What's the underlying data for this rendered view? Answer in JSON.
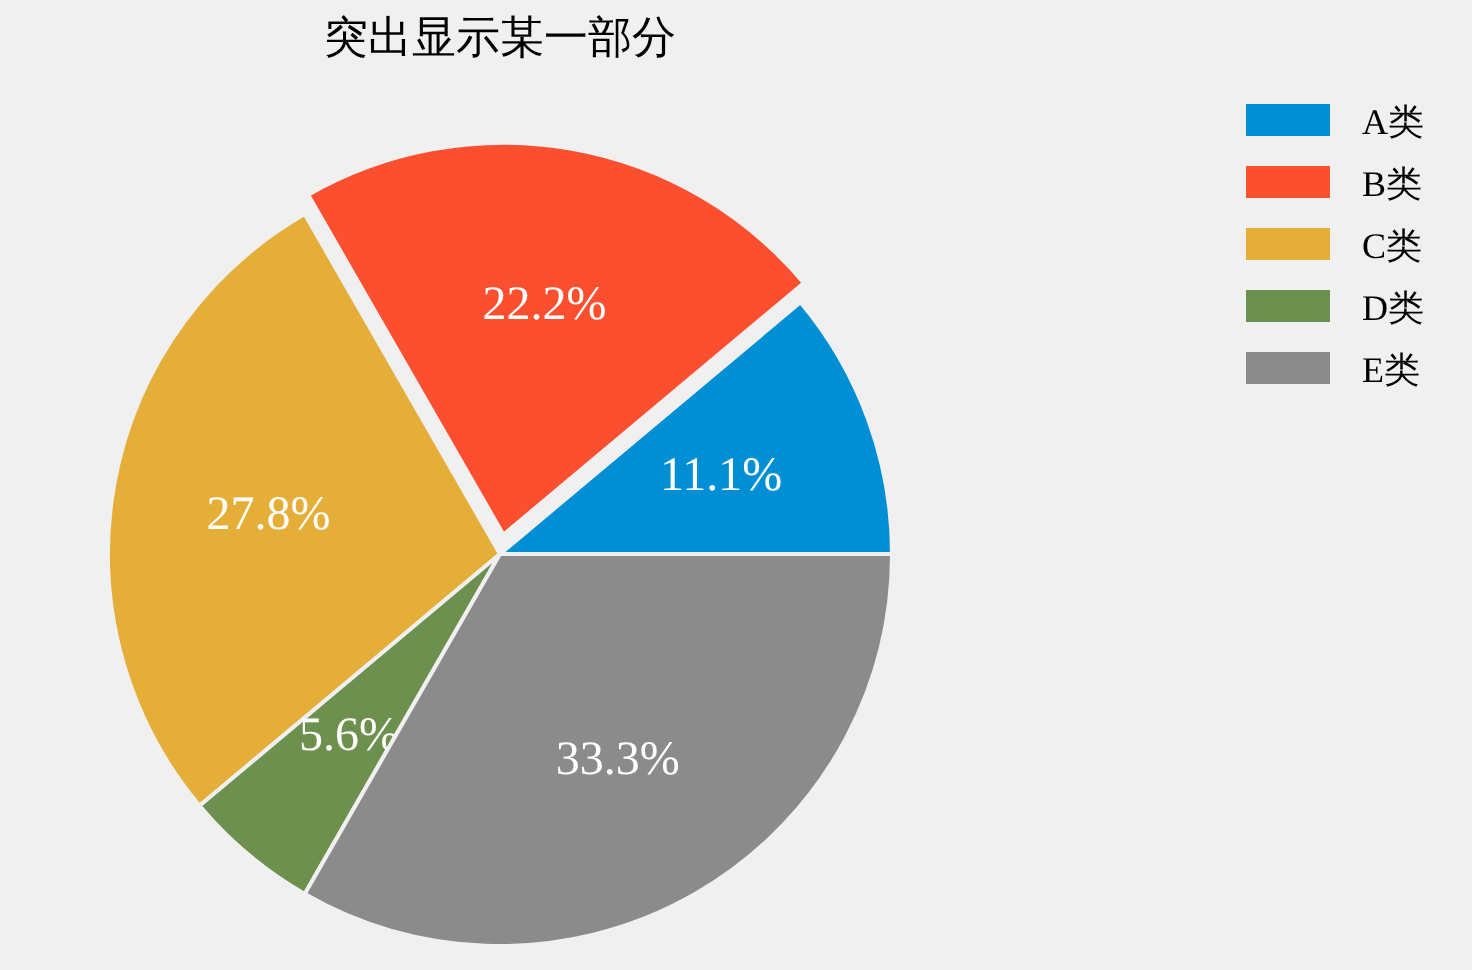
{
  "chart_data": {
    "type": "pie",
    "title": "突出显示某一部分",
    "categories": [
      "A类",
      "B类",
      "C类",
      "D类",
      "E类"
    ],
    "values": [
      11.1,
      22.2,
      27.8,
      5.6,
      33.3
    ],
    "colors": [
      "#008fd5",
      "#fc4f30",
      "#e5ae38",
      "#6d904f",
      "#8b8b8b"
    ],
    "value_labels": [
      "11.1%",
      "22.2%",
      "27.8%",
      "5.6%",
      "33.3%"
    ],
    "legend": "top right"
  }
}
